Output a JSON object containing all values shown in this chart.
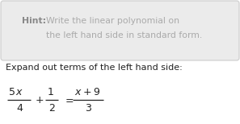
{
  "hint_bold": "Hint:",
  "hint_line1": "Write the linear polynomial on",
  "hint_line2": "the left hand side in standard form.",
  "expand_text": "Expand out terms of the left hand side:",
  "hint_box_facecolor": "#ebebeb",
  "hint_box_edgecolor": "#cccccc",
  "hint_text_color": "#aaaaaa",
  "hint_bold_color": "#888888",
  "body_text_color": "#222222",
  "math_text_color": "#222222",
  "bg_color": "#ffffff",
  "fig_width": 2.97,
  "fig_height": 1.54,
  "dpi": 100
}
